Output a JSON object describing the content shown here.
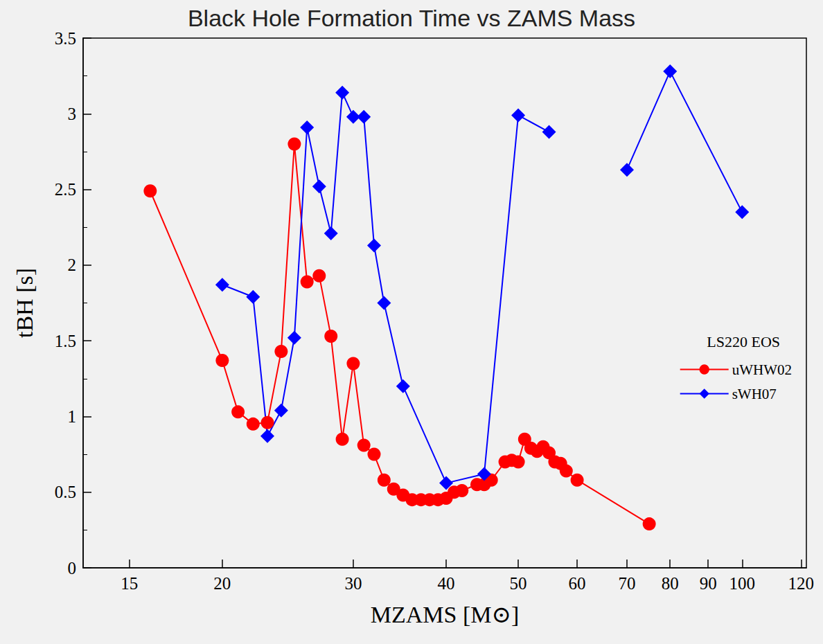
{
  "chart_data": {
    "type": "line",
    "title": "Black Hole Formation Time vs ZAMS Mass",
    "x_label": "MZAMS [M⊙]",
    "y_label": "tBH [s]",
    "legend_title": "LS220 EOS",
    "log": "x",
    "grid": false,
    "legend": "right",
    "xlim": [
      13,
      122
    ],
    "xticks": [
      15,
      20,
      30,
      40,
      50,
      60,
      70,
      80,
      90,
      100,
      120
    ],
    "ylim": [
      0,
      3.5
    ],
    "yticks": [
      0,
      0.5,
      1,
      1.5,
      2,
      2.5,
      3,
      3.5
    ],
    "series": [
      {
        "name": "uWHW02",
        "color": "#ff0000",
        "marker": "circle",
        "x": [
          16,
          20,
          21,
          22,
          23,
          24,
          25,
          26,
          27,
          28,
          29,
          30,
          31,
          32,
          33,
          34,
          35,
          36,
          37,
          38,
          39,
          40,
          41,
          42,
          44,
          45,
          46,
          48,
          49,
          50,
          51,
          52,
          53,
          54,
          55,
          56,
          57,
          58,
          60,
          75
        ],
        "values": [
          2.49,
          1.37,
          1.03,
          0.95,
          0.96,
          1.43,
          2.8,
          1.89,
          1.93,
          1.53,
          0.85,
          1.35,
          0.81,
          0.75,
          0.58,
          0.52,
          0.48,
          0.45,
          0.45,
          0.45,
          0.45,
          0.46,
          0.5,
          0.51,
          0.55,
          0.55,
          0.58,
          0.7,
          0.71,
          0.7,
          0.85,
          0.79,
          0.77,
          0.8,
          0.76,
          0.7,
          0.69,
          0.64,
          0.58,
          0.29
        ]
      },
      {
        "name": "sWH07",
        "color": "#0000ff",
        "marker": "diamond",
        "x": [
          20,
          22,
          23,
          24,
          25,
          26,
          27,
          28,
          29,
          30,
          31,
          32,
          33,
          35,
          40,
          45,
          50,
          55,
          null,
          70,
          80,
          100
        ],
        "values": [
          1.87,
          1.79,
          0.87,
          1.04,
          1.52,
          2.91,
          2.52,
          2.21,
          3.14,
          2.98,
          2.98,
          2.13,
          1.75,
          1.2,
          0.56,
          0.62,
          2.99,
          2.88,
          null,
          2.63,
          3.28,
          2.35
        ]
      }
    ]
  }
}
